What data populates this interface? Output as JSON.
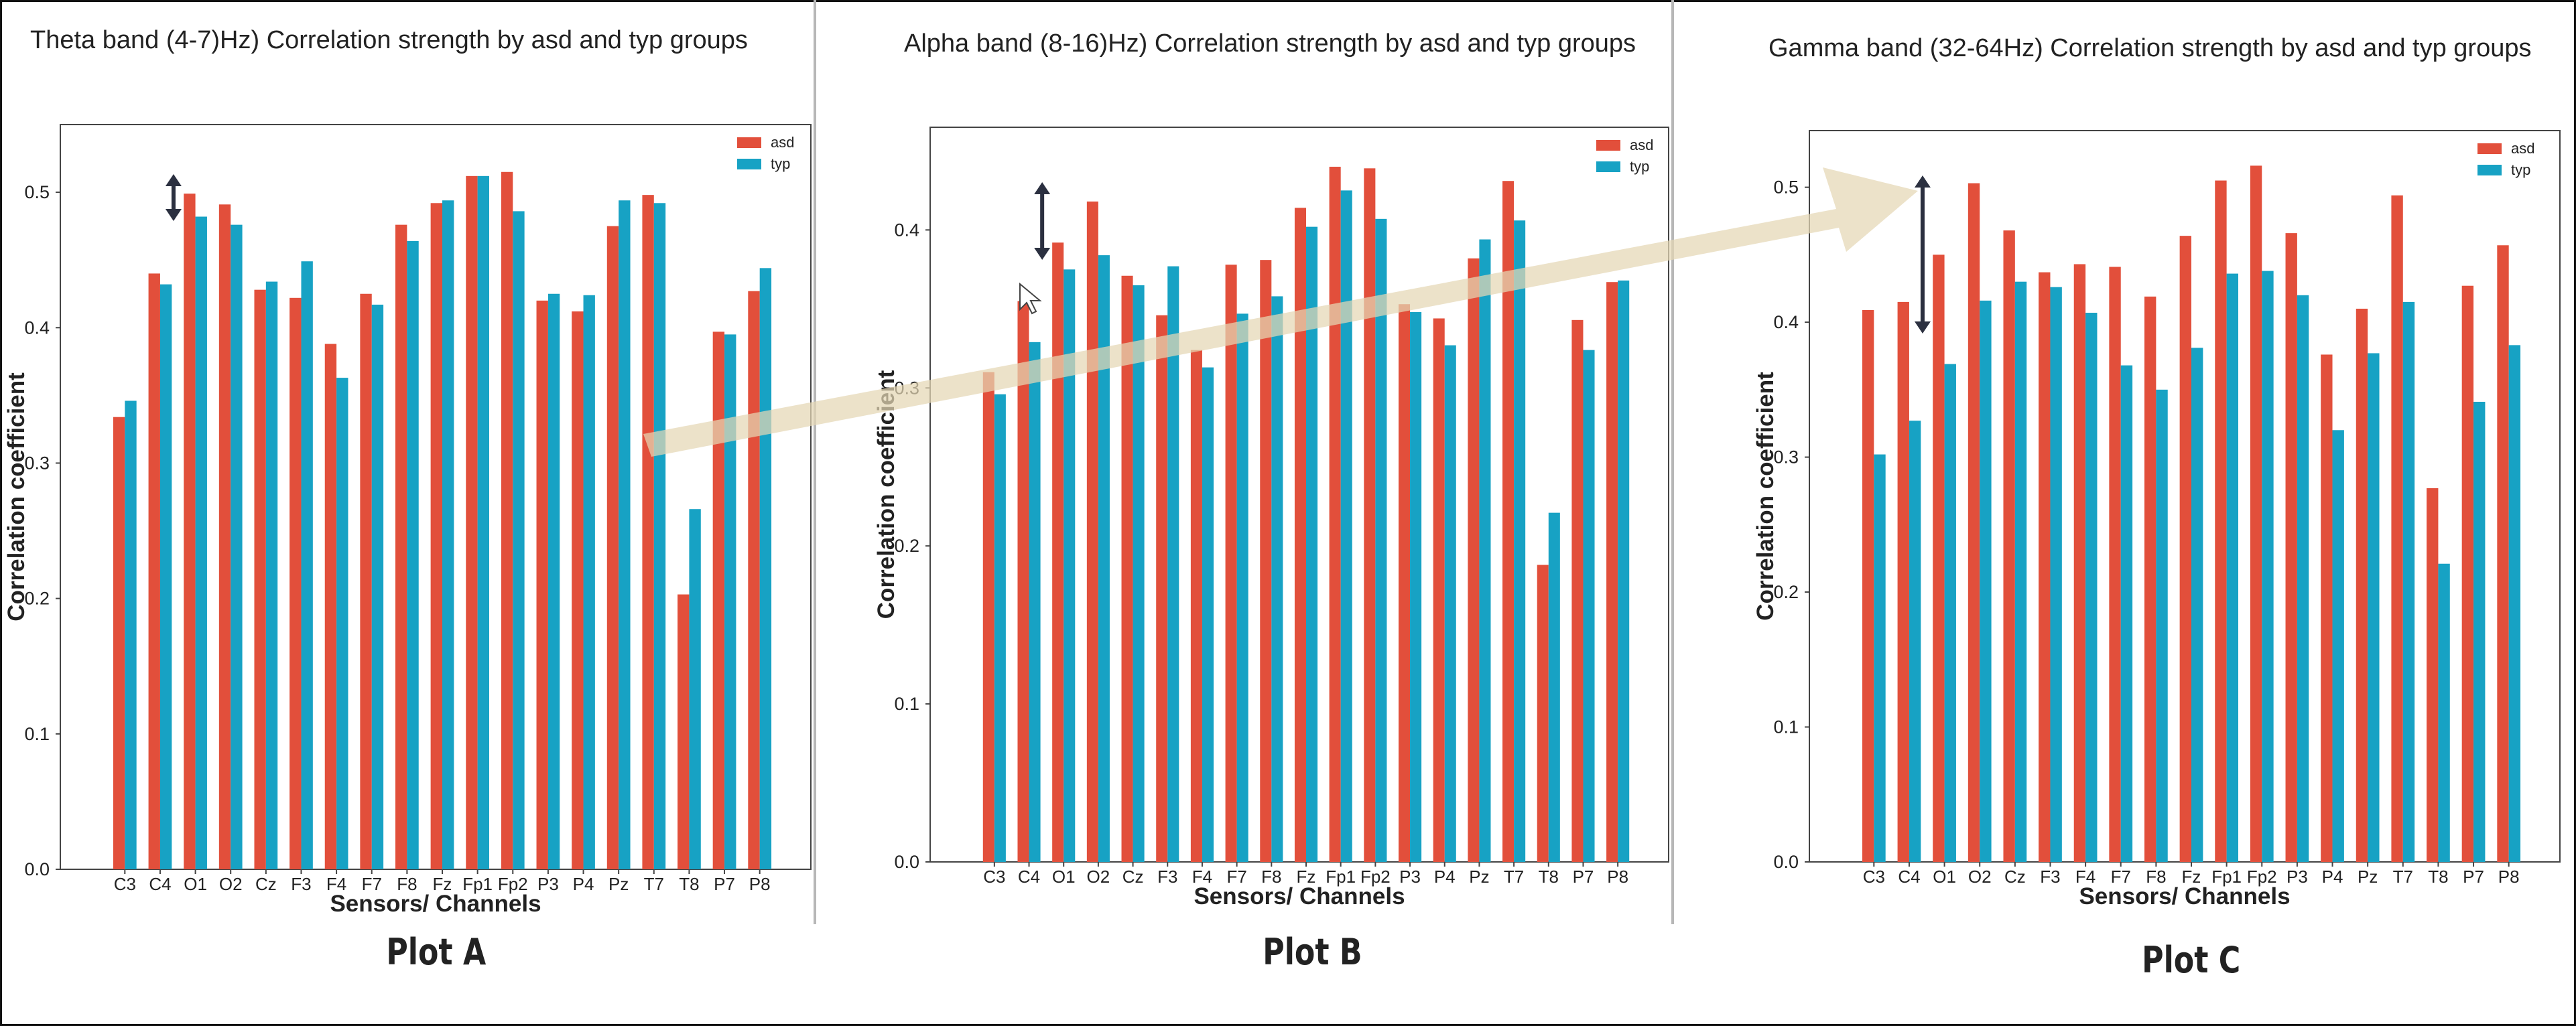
{
  "chart_data": [
    {
      "type": "bar",
      "title": "Theta band (4-7)Hz) Correlation strength by asd and typ groups",
      "xlabel": "Sensors/ Channels",
      "ylabel": "Correlation coefficient",
      "ylim": [
        0,
        0.55
      ],
      "yticks": [
        "0.0",
        "0.1",
        "0.2",
        "0.3",
        "0.4",
        "0.5"
      ],
      "categories": [
        "C3",
        "C4",
        "O1",
        "O2",
        "Cz",
        "F3",
        "F4",
        "F7",
        "F8",
        "Fz",
        "Fp1",
        "Fp2",
        "P3",
        "P4",
        "Pz",
        "T7",
        "T8",
        "P7",
        "P8"
      ],
      "series": [
        {
          "name": "asd",
          "color": "#e24f3b",
          "values": [
            0.334,
            0.44,
            0.499,
            0.491,
            0.428,
            0.422,
            0.388,
            0.425,
            0.476,
            0.492,
            0.512,
            0.515,
            0.42,
            0.412,
            0.475,
            0.498,
            0.203,
            0.397,
            0.427
          ]
        },
        {
          "name": "typ",
          "color": "#17a2c4",
          "values": [
            0.346,
            0.432,
            0.482,
            0.476,
            0.434,
            0.449,
            0.363,
            0.417,
            0.464,
            0.494,
            0.512,
            0.486,
            0.425,
            0.424,
            0.494,
            0.492,
            0.266,
            0.395,
            0.444
          ]
        }
      ],
      "legend": "top-right",
      "grid": false,
      "annotation": "double-headed arrow at O1"
    },
    {
      "type": "bar",
      "title": "Alpha band (8-16)Hz) Correlation strength by asd and typ groups",
      "xlabel": "Sensors/ Channels",
      "ylabel": "Correlation coefficient",
      "ylim": [
        0,
        0.465
      ],
      "yticks": [
        "0.0",
        "0.1",
        "0.2",
        "0.3",
        "0.4"
      ],
      "categories": [
        "C3",
        "C4",
        "O1",
        "O2",
        "Cz",
        "F3",
        "F4",
        "F7",
        "F8",
        "Fz",
        "Fp1",
        "Fp2",
        "P3",
        "P4",
        "Pz",
        "T7",
        "T8",
        "P7",
        "P8"
      ],
      "series": [
        {
          "name": "asd",
          "color": "#e24f3b",
          "values": [
            0.31,
            0.355,
            0.392,
            0.418,
            0.371,
            0.346,
            0.324,
            0.378,
            0.381,
            0.414,
            0.44,
            0.439,
            0.353,
            0.344,
            0.382,
            0.431,
            0.188,
            0.343,
            0.367
          ]
        },
        {
          "name": "typ",
          "color": "#17a2c4",
          "values": [
            0.296,
            0.329,
            0.375,
            0.384,
            0.365,
            0.377,
            0.313,
            0.347,
            0.358,
            0.402,
            0.425,
            0.407,
            0.348,
            0.327,
            0.394,
            0.406,
            0.221,
            0.324,
            0.368
          ]
        }
      ],
      "legend": "top-right",
      "grid": false,
      "annotation": "double-headed arrow at O1"
    },
    {
      "type": "bar",
      "title": "Gamma band (32-64Hz) Correlation strength by asd and typ groups",
      "xlabel": "Sensors/ Channels",
      "ylabel": "Correlation coefficient",
      "ylim": [
        0,
        0.542
      ],
      "yticks": [
        "0.0",
        "0.1",
        "0.2",
        "0.3",
        "0.4",
        "0.5"
      ],
      "categories": [
        "C3",
        "C4",
        "O1",
        "O2",
        "Cz",
        "F3",
        "F4",
        "F7",
        "F8",
        "Fz",
        "Fp1",
        "Fp2",
        "P3",
        "P4",
        "Pz",
        "T7",
        "T8",
        "P7",
        "P8"
      ],
      "series": [
        {
          "name": "asd",
          "color": "#e24f3b",
          "values": [
            0.409,
            0.415,
            0.45,
            0.503,
            0.468,
            0.437,
            0.443,
            0.441,
            0.419,
            0.464,
            0.505,
            0.516,
            0.466,
            0.376,
            0.41,
            0.494,
            0.277,
            0.427,
            0.457
          ]
        },
        {
          "name": "typ",
          "color": "#17a2c4",
          "values": [
            0.302,
            0.327,
            0.369,
            0.416,
            0.43,
            0.426,
            0.407,
            0.368,
            0.35,
            0.381,
            0.436,
            0.438,
            0.42,
            0.32,
            0.377,
            0.415,
            0.221,
            0.341,
            0.383
          ]
        }
      ],
      "legend": "top-right",
      "grid": false,
      "annotation": "double-headed arrow at O1"
    }
  ],
  "captions": [
    "Plot A",
    "Plot B",
    "Plot C"
  ],
  "colors": {
    "asd": "#e24f3b",
    "typ": "#17a2c4",
    "overlay_arrow": "#e4d7b4",
    "marker_arrow": "#2b3040"
  }
}
